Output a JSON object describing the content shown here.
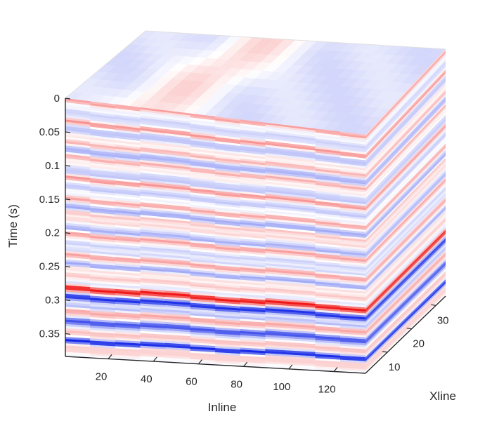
{
  "chart_data": {
    "type": "seismic-cube-3d",
    "ylabel": "Time (s)",
    "xlabel": "Inline",
    "zlabel": "Xline",
    "time_ticks": [
      0,
      0.05,
      0.1,
      0.15,
      0.2,
      0.25,
      0.3,
      0.35
    ],
    "time_tick_labels": [
      "0",
      "0.05",
      "0.1",
      "0.15",
      "0.2",
      "0.25",
      "0.3",
      "0.35"
    ],
    "time_range": [
      0,
      0.384
    ],
    "inline_ticks": [
      20,
      40,
      60,
      80,
      100,
      120
    ],
    "inline_tick_labels": [
      "20",
      "40",
      "60",
      "80",
      "100",
      "120"
    ],
    "inline_range": [
      1,
      134
    ],
    "xline_ticks": [
      10,
      20,
      30
    ],
    "xline_tick_labels": [
      "10",
      "20",
      "30"
    ],
    "xline_range": [
      1,
      34
    ],
    "colormap": {
      "negative": "#0a1ee6",
      "zero": "#ffffff",
      "positive": "#f01414"
    },
    "prominent_reflectors": [
      {
        "time": 0.28,
        "polarity": "positive",
        "strength": 1.0
      },
      {
        "time": 0.294,
        "polarity": "negative",
        "strength": 0.95
      },
      {
        "time": 0.333,
        "polarity": "negative",
        "strength": 0.6
      },
      {
        "time": 0.36,
        "polarity": "negative",
        "strength": 0.5
      }
    ]
  }
}
